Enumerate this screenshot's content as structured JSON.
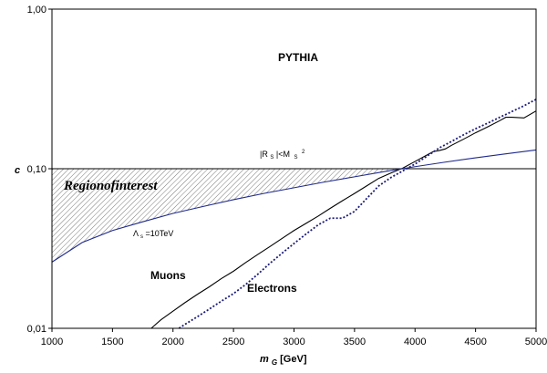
{
  "chart_data": {
    "type": "line",
    "title": "",
    "xlabel_main": "m",
    "xlabel_sub": "G",
    "xlabel_unit": "[GeV]",
    "ylabel": "c",
    "xlim": [
      1000,
      5000
    ],
    "ylim": [
      0.01,
      1.0
    ],
    "yscale": "log",
    "xticks": [
      1000,
      1500,
      2000,
      2500,
      3000,
      3500,
      4000,
      4500,
      5000
    ],
    "xtick_labels": [
      "1000",
      "1500",
      "2000",
      "2500",
      "3000",
      "3500",
      "4000",
      "4500",
      "5000"
    ],
    "yticks": [
      0.01,
      0.1,
      1.0
    ],
    "ytick_labels": [
      "0,01",
      "0,10",
      "1,00"
    ],
    "grid": false,
    "legend": "none",
    "series": [
      {
        "name": "Muons",
        "style": "solid",
        "color": "#000000",
        "x": [
          1820,
          1900,
          2000,
          2100,
          2200,
          2300,
          2400,
          2500,
          2600,
          2700,
          2800,
          2900,
          3000,
          3100,
          3200,
          3300,
          3400,
          3500,
          3600,
          3700,
          3800,
          3900,
          4000,
          4100,
          4150,
          4200,
          4250,
          4300,
          4400,
          4500,
          4600,
          4700,
          4750,
          4800,
          4900,
          5000
        ],
        "y": [
          0.01,
          0.0113,
          0.0128,
          0.0145,
          0.0163,
          0.0182,
          0.0205,
          0.0228,
          0.0258,
          0.029,
          0.0325,
          0.0365,
          0.041,
          0.0455,
          0.0505,
          0.0565,
          0.063,
          0.07,
          0.078,
          0.087,
          0.094,
          0.101,
          0.111,
          0.122,
          0.128,
          0.13,
          0.133,
          0.14,
          0.153,
          0.168,
          0.183,
          0.2,
          0.21,
          0.21,
          0.208,
          0.23
        ]
      },
      {
        "name": "Electrons",
        "style": "dotted",
        "color": "#1a1a7a",
        "x": [
          2050,
          2100,
          2200,
          2300,
          2400,
          2500,
          2600,
          2700,
          2800,
          2900,
          3000,
          3100,
          3200,
          3300,
          3400,
          3500,
          3600,
          3700,
          3800,
          3900,
          4000,
          4100,
          4200,
          4300,
          4400,
          4500,
          4600,
          4700,
          4800,
          4900,
          5000
        ],
        "y": [
          0.01,
          0.0106,
          0.0118,
          0.0132,
          0.0148,
          0.0165,
          0.0188,
          0.0218,
          0.0255,
          0.0295,
          0.034,
          0.039,
          0.0445,
          0.049,
          0.049,
          0.054,
          0.065,
          0.078,
          0.088,
          0.097,
          0.107,
          0.12,
          0.135,
          0.148,
          0.163,
          0.178,
          0.193,
          0.21,
          0.228,
          0.248,
          0.272
        ]
      },
      {
        "name": "Λs=10TeV",
        "style": "solid",
        "color": "#1f2a8c",
        "x": [
          1000,
          1250,
          1500,
          1750,
          2000,
          2250,
          2500,
          2750,
          3000,
          3250,
          3500,
          3750,
          4000,
          4250,
          4500,
          4750,
          5000
        ],
        "y": [
          0.026,
          0.0345,
          0.041,
          0.0465,
          0.0525,
          0.058,
          0.064,
          0.07,
          0.076,
          0.0825,
          0.089,
          0.096,
          0.103,
          0.11,
          0.117,
          0.124,
          0.131
        ]
      },
      {
        "name": "|Rs|<Ms^2",
        "style": "solid",
        "color": "#000000",
        "x": [
          1000,
          5000
        ],
        "y": [
          0.1,
          0.1
        ]
      }
    ],
    "annotations": [
      {
        "text": "PYTHIA",
        "x": 3250,
        "y": 0.5
      },
      {
        "text_main": "|R",
        "text_sub1": "S",
        "text_mid": "|<M",
        "text_sub2": "S",
        "text_sup": "2",
        "x": 3220,
        "y": 0.115
      },
      {
        "text": "Regionofinterest",
        "x": 1150,
        "y": 0.072
      },
      {
        "text_main": "Λ",
        "text_sub": "s",
        "text_rest": "=10TeV",
        "x": 1700,
        "y": 0.037
      },
      {
        "text": "Muons",
        "x": 1900,
        "y": 0.02
      },
      {
        "text": "Electrons",
        "x": 2650,
        "y": 0.0168
      }
    ],
    "shaded_region": "hatched area between Λs=10TeV curve and c=0.10 line up to crossing"
  }
}
